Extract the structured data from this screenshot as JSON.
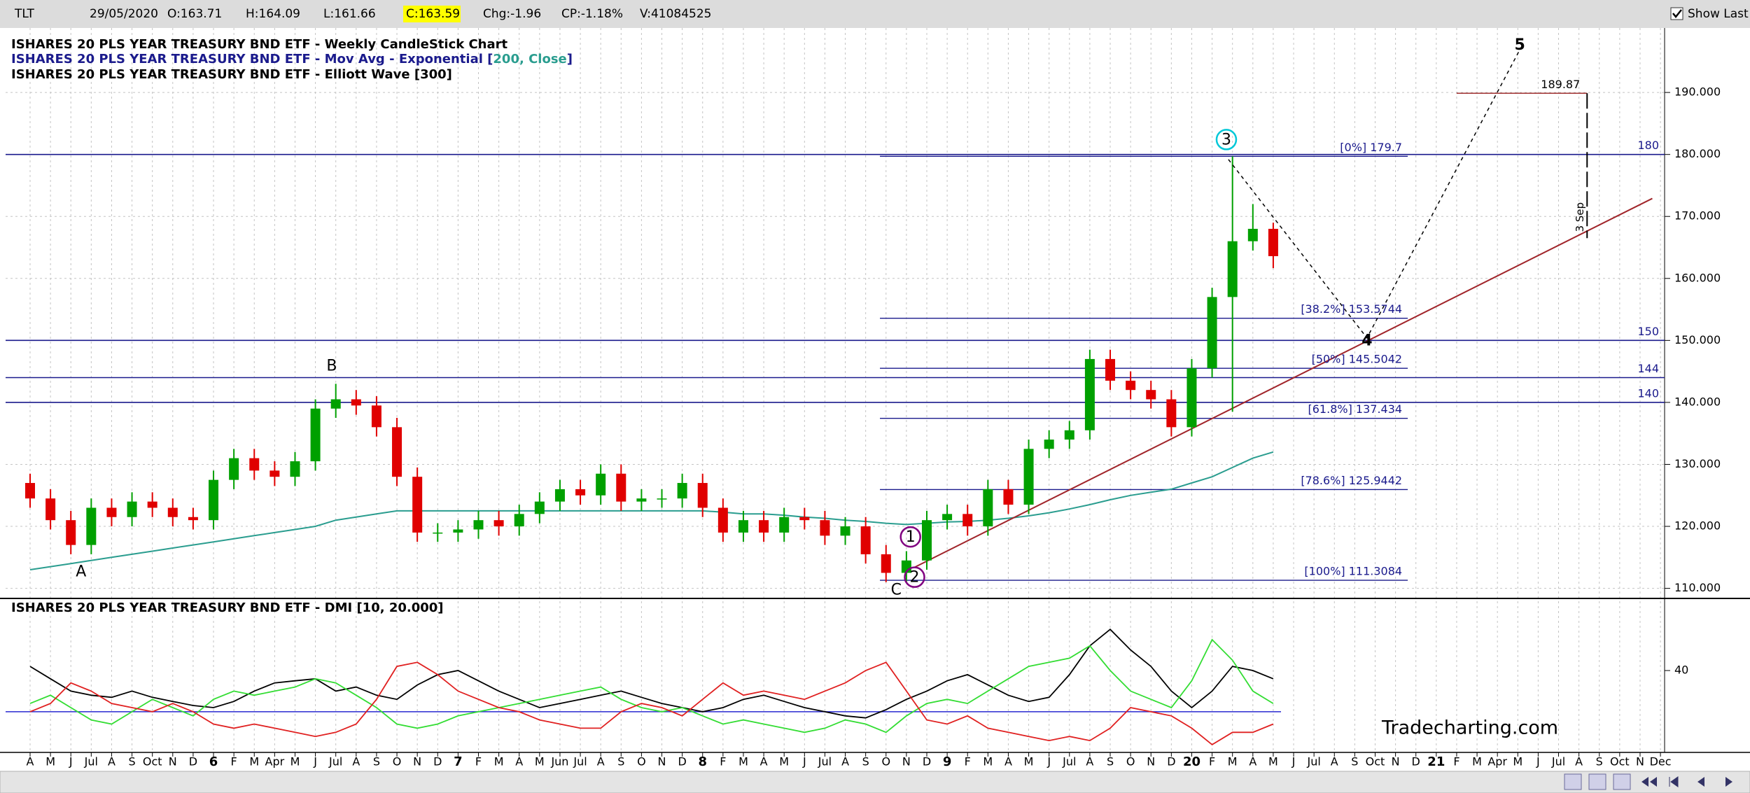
{
  "header": {
    "symbol": "TLT",
    "date": "29/05/2020",
    "open": "O:163.71",
    "high": "H:164.09",
    "low": "L:161.66",
    "close": "C:163.59",
    "change": "Chg:-1.96",
    "change_pct": "CP:-1.18%",
    "volume": "V:41084525",
    "show_last": "Show Last"
  },
  "watermark": "Tradecharting.com",
  "chart_data": [
    {
      "type": "candlestick",
      "title": "ISHARES 20 PLS YEAR TREASURY BND ETF - Weekly CandleStick Chart",
      "wave_title": "ISHARES 20 PLS YEAR TREASURY BND ETF - Elliott Wave [300]",
      "categories": [
        "A",
        "M",
        "J",
        "Jul",
        "A",
        "S",
        "Oct",
        "N",
        "D",
        "6",
        "F",
        "M",
        "Apr",
        "M",
        "J",
        "Jul",
        "A",
        "S",
        "O",
        "N",
        "D",
        "7",
        "F",
        "M",
        "A",
        "M",
        "Jun",
        "Jul",
        "A",
        "S",
        "O",
        "N",
        "D",
        "8",
        "F",
        "M",
        "A",
        "M",
        "J",
        "Jul",
        "A",
        "S",
        "O",
        "N",
        "D",
        "9",
        "F",
        "M",
        "A",
        "M",
        "J",
        "Jul",
        "A",
        "S",
        "O",
        "N",
        "D",
        "20",
        "F",
        "M",
        "A",
        "M",
        "J",
        "Jul",
        "A",
        "S",
        "Oct",
        "N",
        "D",
        "21",
        "F",
        "M",
        "Apr",
        "M",
        "J",
        "Jul",
        "A",
        "S",
        "Oct",
        "N",
        "Dec"
      ],
      "open": [
        127.0,
        124.5,
        121.0,
        117.0,
        123.0,
        121.5,
        124.0,
        123.0,
        121.5,
        121.0,
        127.5,
        131.0,
        129.0,
        128.0,
        130.5,
        139.0,
        140.5,
        139.5,
        136.0,
        128.0,
        119.0,
        119.0,
        119.5,
        121.0,
        120.0,
        122.0,
        124.0,
        126.0,
        125.0,
        128.5,
        124.0,
        124.5,
        124.5,
        127.0,
        123.0,
        119.0,
        121.0,
        119.0,
        121.5,
        121.0,
        118.5,
        120.0,
        115.5,
        112.5,
        114.5,
        121.0,
        122.0,
        120.0,
        126.0,
        123.5,
        132.5,
        134.0,
        135.5,
        147.0,
        143.5,
        142.0,
        140.5,
        136.0,
        145.5,
        157.0,
        166.0,
        168.0,
        null,
        null,
        null,
        null,
        null,
        null,
        null,
        null,
        null,
        null,
        null,
        null,
        null,
        null,
        null,
        null,
        null,
        null,
        null
      ],
      "high": [
        128.5,
        126,
        122.5,
        124.5,
        124.5,
        125.5,
        125.5,
        124.5,
        123,
        129,
        132.5,
        132.5,
        130.5,
        132,
        140.5,
        143,
        142,
        141,
        137.5,
        129.5,
        120.5,
        121,
        122.5,
        122.5,
        123.5,
        125.5,
        127.5,
        127.5,
        130,
        130,
        126,
        126,
        128.5,
        128.5,
        124.5,
        122.5,
        122.5,
        123,
        123,
        122.5,
        121.5,
        121.5,
        117,
        116,
        122.5,
        123.5,
        123.5,
        127.5,
        127.5,
        134,
        135.5,
        137,
        148.5,
        148.5,
        145,
        143.5,
        142,
        147,
        158.5,
        179.7,
        172,
        169,
        null,
        null,
        null,
        null,
        null,
        null,
        null,
        null,
        null,
        null,
        null,
        null,
        null,
        null,
        null,
        null,
        null,
        null,
        null
      ],
      "low": [
        123,
        119.5,
        115.5,
        115.5,
        120,
        120,
        121.5,
        120,
        119.5,
        119.5,
        126,
        127.5,
        126.5,
        126.5,
        129,
        137.5,
        138,
        134.5,
        126.5,
        117.5,
        117.5,
        117.5,
        118,
        118.5,
        118.5,
        120.5,
        122.5,
        123.5,
        123.5,
        122.5,
        122.5,
        123,
        123,
        121.5,
        117.5,
        117.5,
        117.5,
        117.5,
        119.5,
        117,
        117,
        114,
        111,
        111,
        113,
        119.5,
        118.5,
        118.5,
        122,
        122,
        131,
        132.5,
        134,
        142,
        140.5,
        139,
        134.5,
        134.5,
        144,
        138.5,
        164.5,
        161.66,
        null,
        null,
        null,
        null,
        null,
        null,
        null,
        null,
        null,
        null,
        null,
        null,
        null,
        null,
        null,
        null,
        null,
        null,
        null
      ],
      "close": [
        124.5,
        121.0,
        117.0,
        123.0,
        121.5,
        124.0,
        123.0,
        121.5,
        121.0,
        127.5,
        131.0,
        129.0,
        128.0,
        130.5,
        139.0,
        140.5,
        139.5,
        136.0,
        128.0,
        119.0,
        119.0,
        119.5,
        121.0,
        120.0,
        122.0,
        124.0,
        126.0,
        125.0,
        128.5,
        124.0,
        124.5,
        124.5,
        127.0,
        123.0,
        119.0,
        121.0,
        119.0,
        121.5,
        121.0,
        118.5,
        120.0,
        115.5,
        112.5,
        114.5,
        121.0,
        122.0,
        120.0,
        126.0,
        123.5,
        132.5,
        134.0,
        135.5,
        147.0,
        143.5,
        142.0,
        140.5,
        136.0,
        145.5,
        157.0,
        166.0,
        168.0,
        163.59,
        null,
        null,
        null,
        null,
        null,
        null,
        null,
        null,
        null,
        null,
        null,
        null,
        null,
        null,
        null,
        null,
        null,
        null,
        null
      ],
      "up_color": "#00a000",
      "down_color": "#e00000",
      "series": [
        {
          "name": "ISHARES 20 PLS YEAR TREASURY BND ETF - Mov Avg - Exponential [",
          "params": "200, Close",
          "suffix": "]",
          "color": "#2a9d8f",
          "name_color": "#1a1a8c",
          "values": [
            113,
            113.5,
            114,
            114.5,
            115,
            115.5,
            116,
            116.5,
            117,
            117.5,
            118,
            118.5,
            119,
            119.5,
            120,
            121,
            121.5,
            122,
            122.5,
            122.5,
            122.5,
            122.5,
            122.5,
            122.5,
            122.5,
            122.5,
            122.5,
            122.5,
            122.5,
            122.5,
            122.5,
            122.5,
            122.5,
            122.5,
            122.3,
            122,
            122,
            121.8,
            121.5,
            121.3,
            121,
            120.8,
            120.5,
            120.3,
            120.5,
            120.7,
            120.8,
            121,
            121.3,
            121.7,
            122.2,
            122.8,
            123.5,
            124.3,
            125,
            125.5,
            126,
            127,
            128,
            129.5,
            131,
            132,
            null,
            null,
            null,
            null,
            null,
            null,
            null,
            null,
            null,
            null,
            null,
            null,
            null,
            null,
            null,
            null,
            null,
            null,
            null
          ]
        }
      ],
      "ylim": [
        108.6,
        200.4
      ],
      "yticks": [
        {
          "value": 110,
          "label": "110.000"
        },
        {
          "value": 120,
          "label": "120.000"
        },
        {
          "value": 130,
          "label": "130.000"
        },
        {
          "value": 140,
          "label": "140.000"
        },
        {
          "value": 150,
          "label": "150.000"
        },
        {
          "value": 160,
          "label": "160.000"
        },
        {
          "value": 170,
          "label": "170.000"
        },
        {
          "value": 180,
          "label": "180.000"
        },
        {
          "value": 190,
          "label": "190.000"
        }
      ],
      "grid": true,
      "levels": [
        {
          "value": 180,
          "label": "180"
        },
        {
          "value": 150,
          "label": "150"
        },
        {
          "value": 144,
          "label": "144"
        },
        {
          "value": 140,
          "label": "140"
        }
      ],
      "level_color": "#1a1a8c",
      "fib": {
        "x_range": [
          41.7,
          67.6
        ],
        "levels": [
          {
            "value": 179.7,
            "label": "[0%] 179.7"
          },
          {
            "value": 153.5744,
            "label": "[38.2%] 153.5744"
          },
          {
            "value": 145.5042,
            "label": "[50%] 145.5042"
          },
          {
            "value": 137.434,
            "label": "[61.8%] 137.434"
          },
          {
            "value": 125.9442,
            "label": "[78.6%] 125.9442"
          },
          {
            "value": 111.3084,
            "label": "[100%] 111.3084"
          }
        ]
      },
      "waves": [
        {
          "label": "A",
          "x": 2.5,
          "y": 112.7,
          "color": "#e00000",
          "circle": false
        },
        {
          "label": "B",
          "x": 14.8,
          "y": 145.9,
          "color": "#e00000",
          "circle": false
        },
        {
          "label": "C",
          "x": 42.5,
          "y": 109.8,
          "color": "#e00000",
          "circle": false
        },
        {
          "label": "1",
          "x": 43.2,
          "y": 118.3,
          "color": "#800080",
          "circle": true
        },
        {
          "label": "2",
          "x": 43.4,
          "y": 111.8,
          "color": "#800080",
          "circle": true
        },
        {
          "label": "3",
          "x": 58.7,
          "y": 182.4,
          "color": "#00c8d8",
          "circle": true
        },
        {
          "label": "4",
          "x": 65.6,
          "y": 150.0,
          "color": "#000000",
          "circle": false
        },
        {
          "label": "5",
          "x": 73.1,
          "y": 197.7,
          "color": "#000000",
          "circle": false
        }
      ],
      "projection": {
        "x": [
          58.8,
          65.6,
          73.1
        ],
        "y": [
          179.2,
          150.4,
          196.9
        ]
      },
      "trendline": {
        "x": [
          43.4,
          79.6
        ],
        "y": [
          113.4,
          172.9
        ],
        "color": "#a0252a"
      },
      "target": {
        "value": 189.87,
        "label": "189.87",
        "x_range": [
          70,
          76.4
        ],
        "line_to": 166.5,
        "date_label": "3 Sep",
        "color": "#a03030"
      }
    },
    {
      "type": "line",
      "title": "ISHARES 20 PLS YEAR TREASURY BND ETF - DMI [10, 20.000]",
      "series": [
        {
          "color": "#000000",
          "values": [
            42,
            36,
            30,
            28,
            27,
            30,
            27,
            25,
            23,
            22,
            25,
            30,
            34,
            35,
            36,
            30,
            32,
            28,
            26,
            33,
            38,
            40,
            35,
            30,
            26,
            22,
            24,
            26,
            28,
            30,
            27,
            24,
            22,
            20,
            22,
            26,
            28,
            25,
            22,
            20,
            18,
            17,
            21,
            26,
            30,
            35,
            38,
            33,
            28,
            25,
            27,
            38,
            52,
            60,
            50,
            42,
            30,
            22,
            30,
            42,
            40,
            36,
            null,
            null,
            null,
            null,
            null,
            null,
            null,
            null,
            null,
            null,
            null,
            null,
            null,
            null,
            null,
            null,
            null,
            null,
            null
          ]
        },
        {
          "color": "#33dd33",
          "values": [
            24,
            28,
            22,
            16,
            14,
            20,
            26,
            22,
            18,
            26,
            30,
            28,
            30,
            32,
            36,
            34,
            28,
            22,
            14,
            12,
            14,
            18,
            20,
            22,
            24,
            26,
            28,
            30,
            32,
            26,
            22,
            20,
            22,
            18,
            14,
            16,
            14,
            12,
            10,
            12,
            16,
            14,
            10,
            18,
            24,
            26,
            24,
            30,
            36,
            42,
            44,
            46,
            52,
            40,
            30,
            26,
            22,
            35,
            55,
            45,
            30,
            24,
            null,
            null,
            null,
            null,
            null,
            null,
            null,
            null,
            null,
            null,
            null,
            null,
            null,
            null,
            null,
            null,
            null,
            null,
            null
          ]
        },
        {
          "color": "#e02020",
          "values": [
            20,
            24,
            34,
            30,
            24,
            22,
            20,
            24,
            20,
            14,
            12,
            14,
            12,
            10,
            8,
            10,
            14,
            26,
            42,
            44,
            38,
            30,
            26,
            22,
            20,
            16,
            14,
            12,
            12,
            20,
            24,
            22,
            18,
            26,
            34,
            28,
            30,
            28,
            26,
            30,
            34,
            40,
            44,
            30,
            16,
            14,
            18,
            12,
            10,
            8,
            6,
            8,
            6,
            12,
            22,
            20,
            18,
            12,
            4,
            10,
            10,
            14,
            null,
            null,
            null,
            null,
            null,
            null,
            null,
            null,
            null,
            null,
            null,
            null,
            null,
            null,
            null,
            null,
            null,
            null,
            null
          ]
        }
      ],
      "ylim": [
        1.6,
        74
      ],
      "yticks": [
        40
      ],
      "reference_line": 20,
      "reference_color": "#2a2ad0"
    }
  ]
}
